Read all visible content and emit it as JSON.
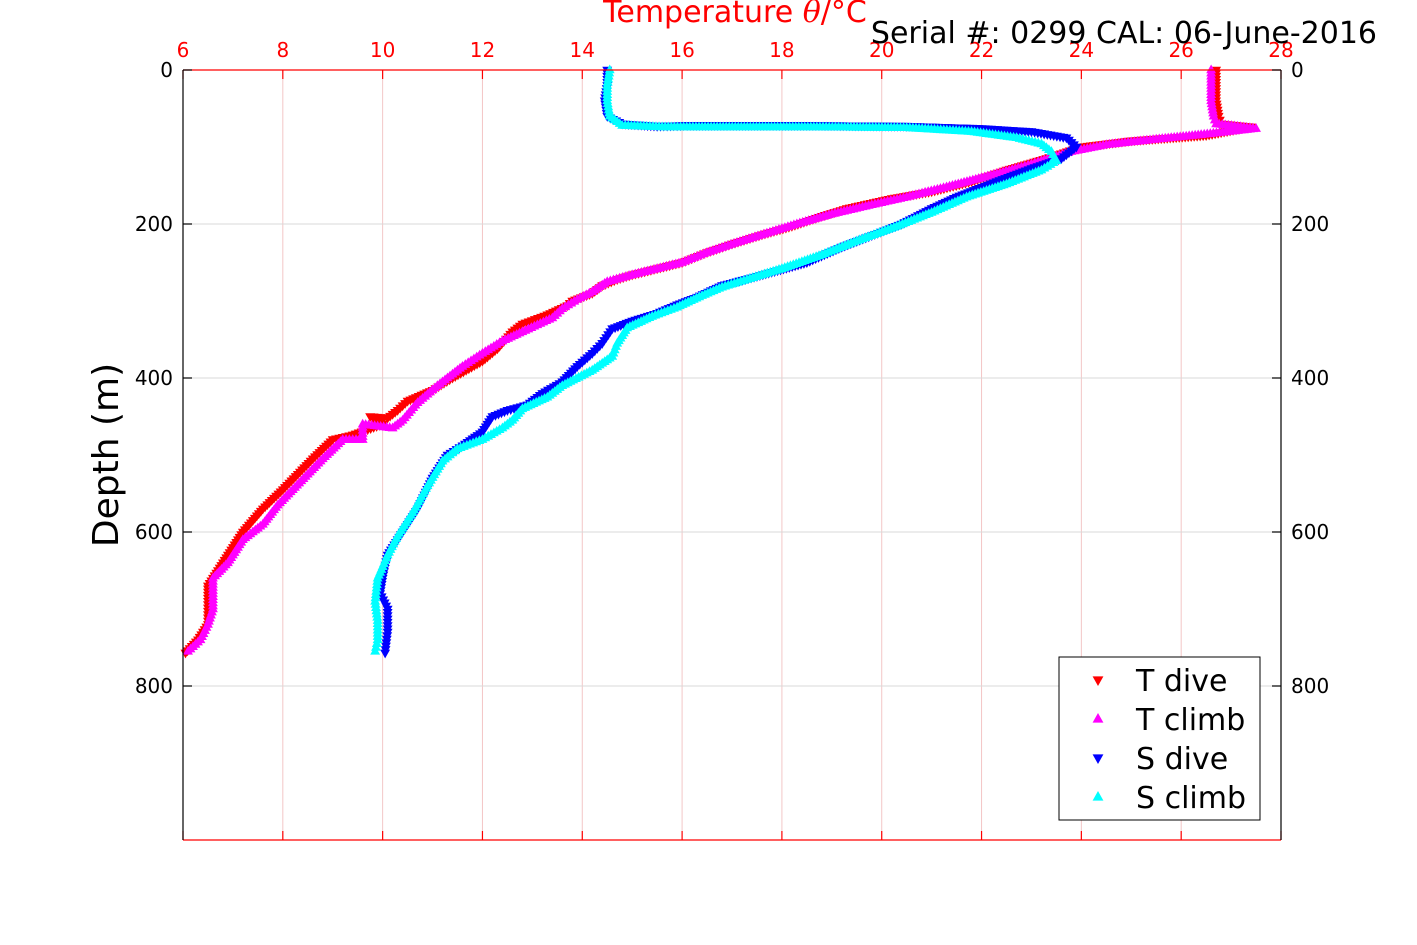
{
  "chart_data": {
    "type": "scatter",
    "title": "Temperature θ/°C",
    "title_parts": {
      "prefix": "Temperature ",
      "symbol": "θ",
      "suffix": "/°C"
    },
    "subtitle": "Serial #: 0299 CAL: 06-June-2016",
    "ylabel": "Depth (m)",
    "xlim": [
      6,
      28
    ],
    "ylim": [
      0,
      1000
    ],
    "y_reversed": true,
    "x_axis_position": "top",
    "x_ticks": [
      6,
      8,
      10,
      12,
      14,
      16,
      18,
      20,
      22,
      24,
      26,
      28
    ],
    "x_tick_labels": [
      "6",
      "8",
      "10",
      "12",
      "14",
      "16",
      "18",
      "20",
      "22",
      "24",
      "26",
      "28"
    ],
    "y_ticks": [
      0,
      200,
      400,
      600,
      800
    ],
    "y_tick_labels": [
      "0",
      "200",
      "400",
      "600",
      "800"
    ],
    "grid": true,
    "legend_position": "bottom-right",
    "colors": {
      "axis_x": "#ff0000",
      "axis_y": "#000000",
      "grid": "#d9d9d9"
    },
    "series": [
      {
        "name": "T dive",
        "color": "#ff0000",
        "marker": "triangle-down",
        "points": [
          [
            26.7,
            0
          ],
          [
            26.7,
            20
          ],
          [
            26.7,
            40
          ],
          [
            26.75,
            60
          ],
          [
            26.8,
            70
          ],
          [
            27.4,
            74
          ],
          [
            26.5,
            85
          ],
          [
            25.0,
            92
          ],
          [
            24.0,
            100
          ],
          [
            23.3,
            115
          ],
          [
            22.5,
            130
          ],
          [
            21.8,
            145
          ],
          [
            21.0,
            158
          ],
          [
            20.2,
            167
          ],
          [
            19.3,
            180
          ],
          [
            18.8,
            190
          ],
          [
            18.2,
            203
          ],
          [
            17.6,
            214
          ],
          [
            17.0,
            226
          ],
          [
            16.5,
            237
          ],
          [
            16.0,
            250
          ],
          [
            15.5,
            258
          ],
          [
            15.0,
            266
          ],
          [
            14.7,
            272
          ],
          [
            14.4,
            280
          ],
          [
            14.2,
            290
          ],
          [
            13.8,
            300
          ],
          [
            13.7,
            306
          ],
          [
            13.3,
            318
          ],
          [
            12.8,
            330
          ],
          [
            12.6,
            340
          ],
          [
            12.3,
            362
          ],
          [
            12.0,
            378
          ],
          [
            11.4,
            400
          ],
          [
            11.0,
            416
          ],
          [
            10.5,
            430
          ],
          [
            10.3,
            442
          ],
          [
            10.1,
            452
          ],
          [
            9.75,
            450
          ],
          [
            10.0,
            460
          ],
          [
            9.4,
            474
          ],
          [
            9.0,
            480
          ],
          [
            8.6,
            505
          ],
          [
            8.3,
            525
          ],
          [
            8.0,
            545
          ],
          [
            7.6,
            570
          ],
          [
            7.2,
            600
          ],
          [
            7.0,
            620
          ],
          [
            6.7,
            650
          ],
          [
            6.5,
            670
          ],
          [
            6.5,
            690
          ],
          [
            6.5,
            720
          ],
          [
            6.3,
            740
          ],
          [
            6.05,
            757
          ]
        ]
      },
      {
        "name": "T climb",
        "color": "#ff00ff",
        "marker": "triangle-up",
        "points": [
          [
            26.6,
            0
          ],
          [
            26.6,
            20
          ],
          [
            26.6,
            40
          ],
          [
            26.65,
            60
          ],
          [
            26.7,
            70
          ],
          [
            27.5,
            76
          ],
          [
            26.4,
            84
          ],
          [
            25.5,
            90
          ],
          [
            24.5,
            97
          ],
          [
            23.8,
            106
          ],
          [
            23.2,
            118
          ],
          [
            22.8,
            126
          ],
          [
            22.0,
            140
          ],
          [
            21.3,
            152
          ],
          [
            20.5,
            165
          ],
          [
            19.8,
            175
          ],
          [
            19.0,
            187
          ],
          [
            18.3,
            200
          ],
          [
            17.7,
            212
          ],
          [
            17.1,
            224
          ],
          [
            16.5,
            237
          ],
          [
            16.0,
            250
          ],
          [
            15.5,
            258
          ],
          [
            15.0,
            266
          ],
          [
            14.5,
            275
          ],
          [
            14.2,
            288
          ],
          [
            13.9,
            298
          ],
          [
            13.6,
            310
          ],
          [
            13.4,
            322
          ],
          [
            12.8,
            340
          ],
          [
            12.4,
            352
          ],
          [
            12.0,
            368
          ],
          [
            11.6,
            385
          ],
          [
            11.1,
            410
          ],
          [
            10.7,
            432
          ],
          [
            10.4,
            455
          ],
          [
            10.2,
            465
          ],
          [
            9.6,
            460
          ],
          [
            9.6,
            480
          ],
          [
            9.2,
            480
          ],
          [
            8.8,
            505
          ],
          [
            8.5,
            525
          ],
          [
            8.2,
            545
          ],
          [
            7.9,
            565
          ],
          [
            7.6,
            590
          ],
          [
            7.2,
            610
          ],
          [
            6.9,
            640
          ],
          [
            6.6,
            660
          ],
          [
            6.6,
            680
          ],
          [
            6.6,
            700
          ],
          [
            6.5,
            720
          ],
          [
            6.35,
            740
          ],
          [
            6.1,
            755
          ]
        ]
      },
      {
        "name": "S dive",
        "color": "#0000ff",
        "marker": "triangle-down",
        "points": [
          [
            14.5,
            0
          ],
          [
            14.5,
            20
          ],
          [
            14.45,
            40
          ],
          [
            14.5,
            60
          ],
          [
            14.8,
            70
          ],
          [
            15.5,
            73
          ],
          [
            16.1,
            72
          ],
          [
            18.5,
            72
          ],
          [
            20.5,
            73
          ],
          [
            22.0,
            76
          ],
          [
            23.0,
            80
          ],
          [
            23.7,
            88
          ],
          [
            23.9,
            100
          ],
          [
            23.6,
            115
          ],
          [
            23.0,
            128
          ],
          [
            22.3,
            145
          ],
          [
            21.5,
            165
          ],
          [
            21.0,
            180
          ],
          [
            20.4,
            200
          ],
          [
            19.8,
            215
          ],
          [
            19.2,
            230
          ],
          [
            18.5,
            250
          ],
          [
            17.5,
            268
          ],
          [
            16.8,
            280
          ],
          [
            16.3,
            295
          ],
          [
            15.9,
            305
          ],
          [
            15.5,
            316
          ],
          [
            15.0,
            326
          ],
          [
            14.6,
            336
          ],
          [
            14.4,
            355
          ],
          [
            14.2,
            368
          ],
          [
            13.9,
            385
          ],
          [
            13.6,
            405
          ],
          [
            13.2,
            420
          ],
          [
            12.9,
            435
          ],
          [
            12.5,
            442
          ],
          [
            12.2,
            450
          ],
          [
            12.0,
            470
          ],
          [
            11.6,
            488
          ],
          [
            11.3,
            500
          ],
          [
            11.0,
            530
          ],
          [
            10.7,
            570
          ],
          [
            10.4,
            600
          ],
          [
            10.1,
            630
          ],
          [
            10.0,
            660
          ],
          [
            9.95,
            680
          ],
          [
            10.1,
            700
          ],
          [
            10.1,
            730
          ],
          [
            10.05,
            757
          ]
        ]
      },
      {
        "name": "S climb",
        "color": "#00ffff",
        "marker": "triangle-up",
        "points": [
          [
            14.55,
            0
          ],
          [
            14.5,
            20
          ],
          [
            14.5,
            40
          ],
          [
            14.55,
            60
          ],
          [
            14.8,
            72
          ],
          [
            15.6,
            74
          ],
          [
            16.4,
            74
          ],
          [
            18.7,
            74
          ],
          [
            20.5,
            75
          ],
          [
            21.8,
            80
          ],
          [
            22.7,
            88
          ],
          [
            23.2,
            96
          ],
          [
            23.4,
            106
          ],
          [
            23.5,
            118
          ],
          [
            23.2,
            130
          ],
          [
            22.5,
            148
          ],
          [
            21.7,
            165
          ],
          [
            21.0,
            185
          ],
          [
            20.3,
            203
          ],
          [
            19.5,
            222
          ],
          [
            18.8,
            240
          ],
          [
            18.0,
            258
          ],
          [
            17.3,
            272
          ],
          [
            16.8,
            282
          ],
          [
            16.4,
            293
          ],
          [
            15.9,
            308
          ],
          [
            15.4,
            320
          ],
          [
            14.9,
            335
          ],
          [
            14.7,
            355
          ],
          [
            14.6,
            372
          ],
          [
            14.2,
            390
          ],
          [
            13.6,
            410
          ],
          [
            13.3,
            425
          ],
          [
            12.8,
            440
          ],
          [
            12.6,
            455
          ],
          [
            12.4,
            465
          ],
          [
            12.0,
            480
          ],
          [
            11.5,
            492
          ],
          [
            11.2,
            508
          ],
          [
            10.9,
            540
          ],
          [
            10.6,
            575
          ],
          [
            10.3,
            605
          ],
          [
            10.1,
            630
          ],
          [
            9.9,
            660
          ],
          [
            9.85,
            690
          ],
          [
            9.9,
            715
          ],
          [
            9.9,
            740
          ],
          [
            9.85,
            755
          ]
        ]
      }
    ]
  }
}
